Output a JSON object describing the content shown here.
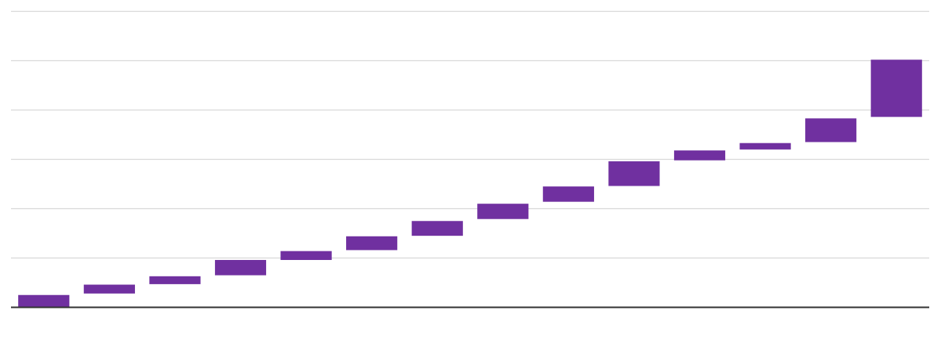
{
  "chart_data": {
    "type": "bar",
    "subtype": "waterfall",
    "title": "",
    "xlabel": "",
    "ylabel": "",
    "ylim": [
      0,
      6
    ],
    "grid": true,
    "gridlines": [
      0,
      1,
      2,
      3,
      4,
      5,
      6
    ],
    "bar_color": "#7030a0",
    "bars": [
      {
        "low": 0.0,
        "high": 0.25
      },
      {
        "low": 0.28,
        "high": 0.46
      },
      {
        "low": 0.47,
        "high": 0.63
      },
      {
        "low": 0.65,
        "high": 0.96
      },
      {
        "low": 0.96,
        "high": 1.14
      },
      {
        "low": 1.16,
        "high": 1.44
      },
      {
        "low": 1.45,
        "high": 1.75
      },
      {
        "low": 1.79,
        "high": 2.1
      },
      {
        "low": 2.14,
        "high": 2.45
      },
      {
        "low": 2.46,
        "high": 2.96
      },
      {
        "low": 2.98,
        "high": 3.18
      },
      {
        "low": 3.2,
        "high": 3.33
      },
      {
        "low": 3.35,
        "high": 3.83
      },
      {
        "low": 3.86,
        "high": 5.02
      }
    ]
  },
  "colors": {
    "bar": "#7030a0",
    "grid": "#d9d9d9",
    "axis": "#333333"
  }
}
